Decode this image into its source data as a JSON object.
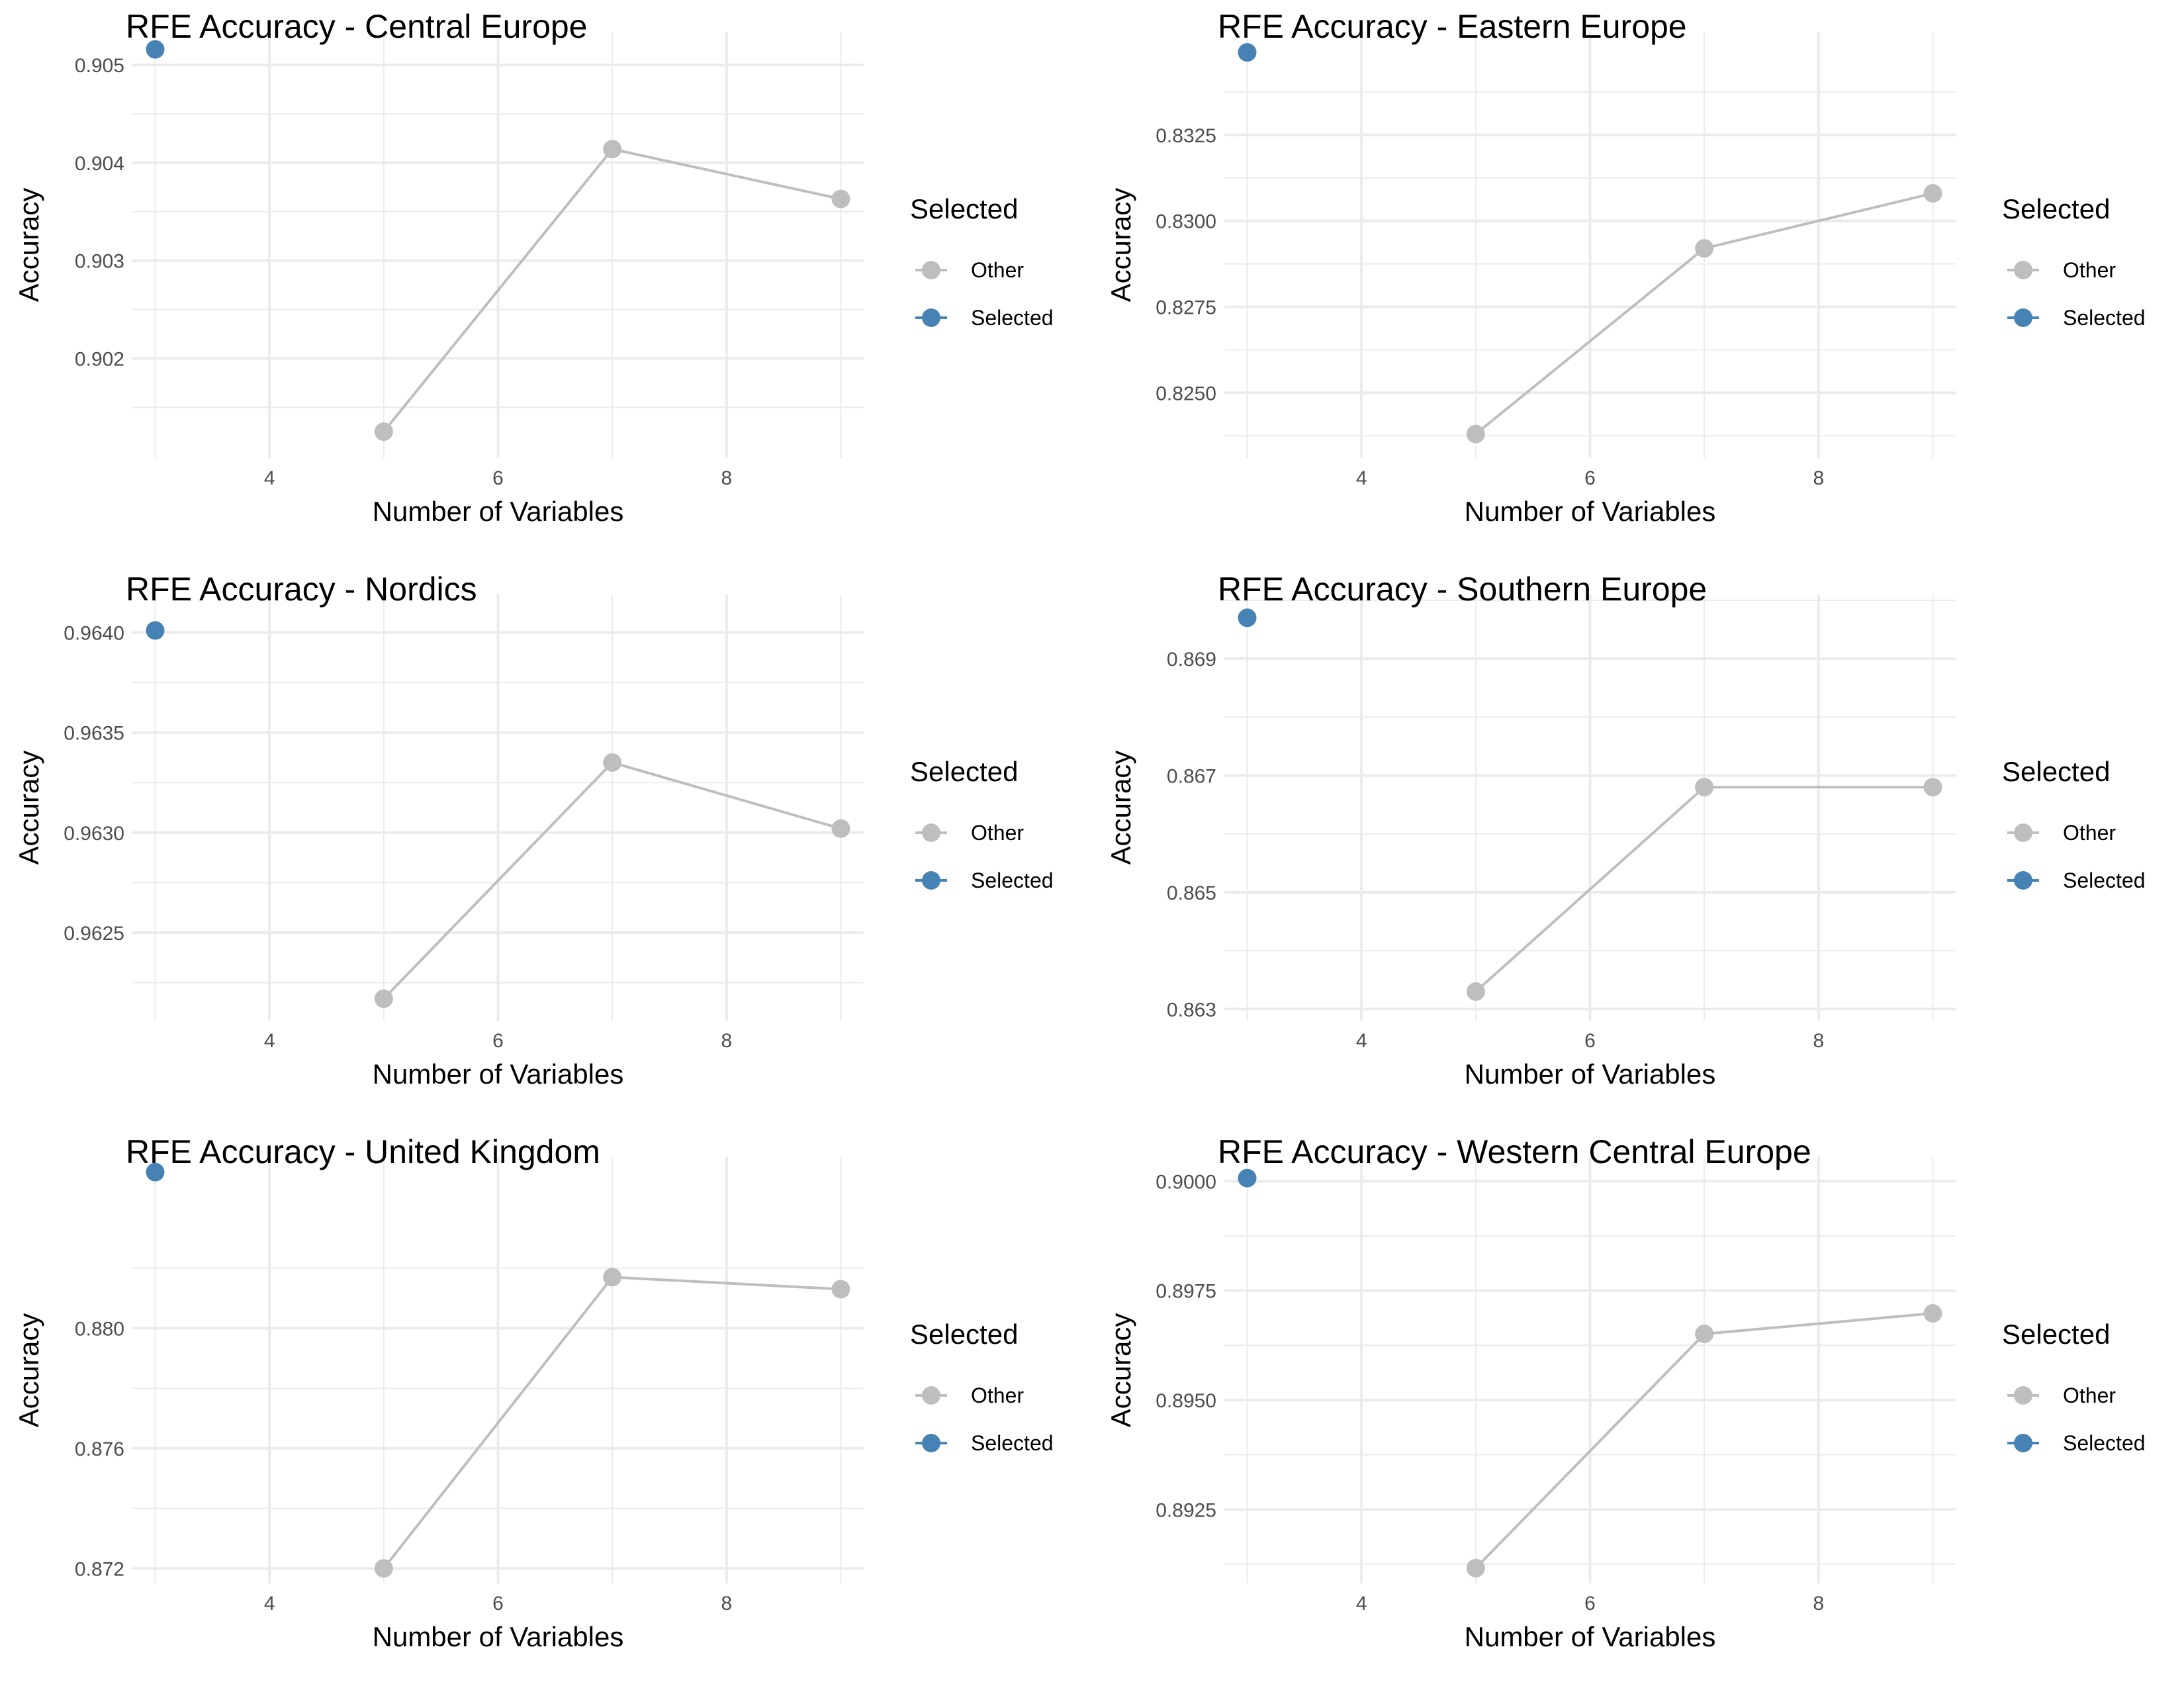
{
  "legend": {
    "title": "Selected",
    "items": [
      {
        "label": "Other",
        "color": "#BEBEBE"
      },
      {
        "label": "Selected",
        "color": "#4682B4"
      }
    ]
  },
  "colors": {
    "line": "#BEBEBE",
    "other": "#BEBEBE",
    "selected": "#4682B4",
    "grid": "#EBEBEB"
  },
  "chart_data": [
    {
      "type": "line",
      "title": "RFE Accuracy - Central Europe",
      "xlabel": "Number of Variables",
      "ylabel": "Accuracy",
      "xlim": [
        2.8,
        9.2
      ],
      "ylim": [
        0.90098,
        0.90534
      ],
      "xticks": [
        4,
        6,
        8
      ],
      "xtick_labels": [
        "4",
        "6",
        "8"
      ],
      "yticks": [
        0.902,
        0.903,
        0.904,
        0.905
      ],
      "ytick_labels": [
        "0.902",
        "0.903",
        "0.904",
        "0.905"
      ],
      "grid": true,
      "legend_position": "right",
      "x": [
        3,
        5,
        7,
        9
      ],
      "y": [
        0.90516,
        0.90125,
        0.90414,
        0.90363
      ],
      "selected": [
        "Selected",
        "Other",
        "Other",
        "Other"
      ]
    },
    {
      "type": "line",
      "title": "RFE Accuracy - Eastern Europe",
      "xlabel": "Number of Variables",
      "ylabel": "Accuracy",
      "xlim": [
        2.8,
        9.2
      ],
      "ylim": [
        0.8231,
        0.8355
      ],
      "xticks": [
        4,
        6,
        8
      ],
      "xtick_labels": [
        "4",
        "6",
        "8"
      ],
      "yticks": [
        0.825,
        0.8275,
        0.83,
        0.8325
      ],
      "ytick_labels": [
        "0.8250",
        "0.8275",
        "0.8300",
        "0.8325"
      ],
      "grid": true,
      "legend_position": "right",
      "x": [
        3,
        5,
        7,
        9
      ],
      "y": [
        0.8349,
        0.8238,
        0.8292,
        0.8308
      ],
      "selected": [
        "Selected",
        "Other",
        "Other",
        "Other"
      ]
    },
    {
      "type": "line",
      "title": "RFE Accuracy - Nordics",
      "xlabel": "Number of Variables",
      "ylabel": "Accuracy",
      "xlim": [
        2.8,
        9.2
      ],
      "ylim": [
        0.96206,
        0.96419
      ],
      "xticks": [
        4,
        6,
        8
      ],
      "xtick_labels": [
        "4",
        "6",
        "8"
      ],
      "yticks": [
        0.9625,
        0.963,
        0.9635,
        0.964
      ],
      "ytick_labels": [
        "0.9625",
        "0.9630",
        "0.9635",
        "0.9640"
      ],
      "grid": true,
      "legend_position": "right",
      "x": [
        3,
        5,
        7,
        9
      ],
      "y": [
        0.96401,
        0.96217,
        0.96335,
        0.96302
      ],
      "selected": [
        "Selected",
        "Other",
        "Other",
        "Other"
      ]
    },
    {
      "type": "line",
      "title": "RFE Accuracy - Southern Europe",
      "xlabel": "Number of Variables",
      "ylabel": "Accuracy",
      "xlim": [
        2.8,
        9.2
      ],
      "ylim": [
        0.8628,
        0.8701
      ],
      "xticks": [
        4,
        6,
        8
      ],
      "xtick_labels": [
        "4",
        "6",
        "8"
      ],
      "yticks": [
        0.863,
        0.865,
        0.867,
        0.869
      ],
      "ytick_labels": [
        "0.863",
        "0.865",
        "0.867",
        "0.869"
      ],
      "grid": true,
      "legend_position": "right",
      "x": [
        3,
        5,
        7,
        9
      ],
      "y": [
        0.8697,
        0.8633,
        0.8668,
        0.8668
      ],
      "selected": [
        "Selected",
        "Other",
        "Other",
        "Other"
      ]
    },
    {
      "type": "line",
      "title": "RFE Accuracy - United Kingdom",
      "xlabel": "Number of Variables",
      "ylabel": "Accuracy",
      "xlim": [
        2.8,
        9.2
      ],
      "ylim": [
        0.8715,
        0.8857
      ],
      "xticks": [
        4,
        6,
        8
      ],
      "xtick_labels": [
        "4",
        "6",
        "8"
      ],
      "yticks": [
        0.872,
        0.876,
        0.88
      ],
      "ytick_labels": [
        "0.872",
        "0.876",
        "0.880"
      ],
      "grid": true,
      "legend_position": "right",
      "x": [
        3,
        5,
        7,
        9
      ],
      "y": [
        0.8852,
        0.872,
        0.8817,
        0.8813
      ],
      "selected": [
        "Selected",
        "Other",
        "Other",
        "Other"
      ]
    },
    {
      "type": "line",
      "title": "RFE Accuracy - Western Central Europe",
      "xlabel": "Number of Variables",
      "ylabel": "Accuracy",
      "xlim": [
        2.8,
        9.2
      ],
      "ylim": [
        0.89081,
        0.90055
      ],
      "xticks": [
        4,
        6,
        8
      ],
      "xtick_labels": [
        "4",
        "6",
        "8"
      ],
      "yticks": [
        0.8925,
        0.895,
        0.8975,
        0.9
      ],
      "ytick_labels": [
        "0.8925",
        "0.8950",
        "0.8975",
        "0.9000"
      ],
      "grid": true,
      "legend_position": "right",
      "x": [
        3,
        5,
        7,
        9
      ],
      "y": [
        0.90007,
        0.89116,
        0.89651,
        0.89698
      ],
      "selected": [
        "Selected",
        "Other",
        "Other",
        "Other"
      ]
    }
  ]
}
